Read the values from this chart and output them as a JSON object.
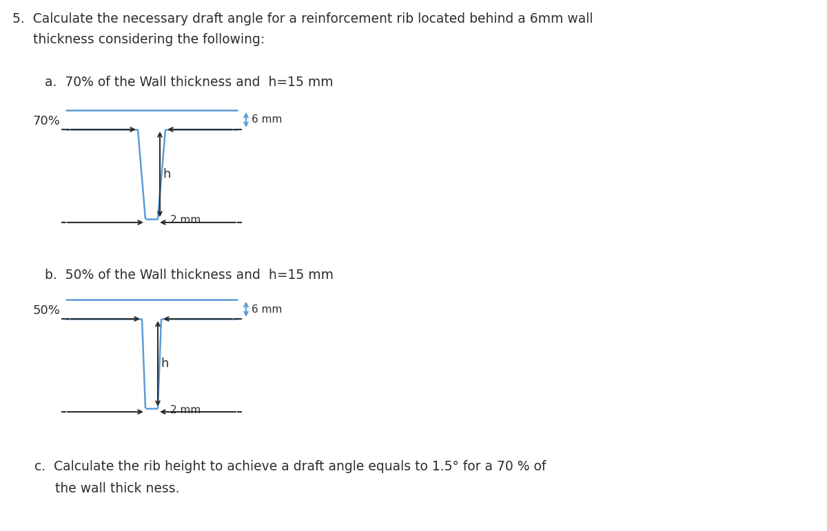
{
  "bg_color": "#ffffff",
  "text_color": "#2d2d2d",
  "blue_color": "#5b9bd5",
  "black_color": "#2d2d2d",
  "title_line1": "5.  Calculate the necessary draft angle for a reinforcement rib located behind a 6mm wall",
  "title_line2": "     thickness considering the following:",
  "label_a": "a.  70% of the Wall thickness and  h=15 mm",
  "label_b": "b.  50% of the Wall thickness and  h=15 mm",
  "label_c": "c.  Calculate the rib height to achieve a draft angle equals to 1.5° for a 70 % of",
  "label_c2": "     the wall thick ness.",
  "pct_a": "70%",
  "pct_b": "50%",
  "h_label": "h",
  "dim_6mm": "6 mm",
  "dim_2mm": "2 mm",
  "font_size_title": 13.5,
  "font_size_label": 13.5,
  "font_size_dim": 11,
  "font_size_pct": 13,
  "fig_w": 1200,
  "fig_h": 771,
  "dpi": 100
}
